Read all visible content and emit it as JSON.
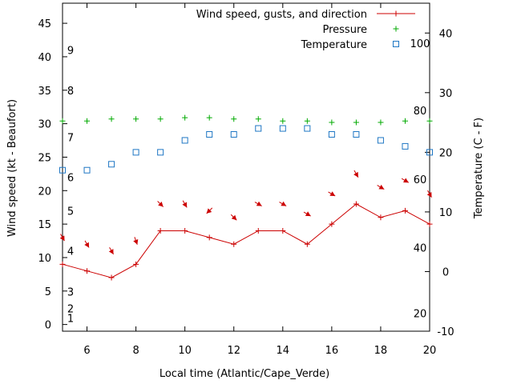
{
  "chart_data": {
    "type": "line",
    "title": "",
    "xlabel": "Local time (Atlantic/Cape_Verde)",
    "ylabel": "Wind speed (kt - Beaufort)",
    "y2label": "Temperature (C - F)",
    "xlim": [
      5,
      20
    ],
    "ylim": [
      -1,
      48
    ],
    "y2lim": [
      -10,
      45
    ],
    "grid": false,
    "legend_position": "top-right",
    "x_ticks": [
      6,
      8,
      10,
      12,
      14,
      16,
      18,
      20
    ],
    "y_ticks": [
      0,
      5,
      10,
      15,
      20,
      25,
      30,
      35,
      40,
      45
    ],
    "y2_ticks": [
      -10,
      0,
      10,
      20,
      30,
      40
    ],
    "beaufort_labels": [
      {
        "y": 1,
        "label": "1"
      },
      {
        "y": 2.4,
        "label": "2"
      },
      {
        "y": 4.9,
        "label": "3"
      },
      {
        "y": 11,
        "label": "4"
      },
      {
        "y": 17,
        "label": "5"
      },
      {
        "y": 22,
        "label": "6"
      },
      {
        "y": 28,
        "label": "7"
      },
      {
        "y": 35,
        "label": "8"
      },
      {
        "y": 41,
        "label": "9"
      }
    ],
    "fahrenheit_labels": [
      {
        "y": -7,
        "label": "20"
      },
      {
        "y": 4,
        "label": "40"
      },
      {
        "y": 15.5,
        "label": "60"
      },
      {
        "y": 27,
        "label": "80"
      },
      {
        "y": 38.3,
        "label": "100"
      }
    ],
    "series": [
      {
        "name": "Wind speed, gusts, and direction",
        "color": "#cc0000",
        "x": [
          5,
          6,
          7,
          8,
          9,
          10,
          11,
          12,
          13,
          14,
          15,
          16,
          17,
          18,
          19,
          20
        ],
        "values": [
          9,
          8,
          7,
          9,
          14,
          14,
          13,
          12,
          14,
          14,
          12,
          15,
          18,
          16,
          17,
          15
        ],
        "gusts": [
          13,
          12,
          11,
          12.5,
          18,
          18,
          17,
          16,
          18,
          18,
          16.5,
          19.5,
          22.5,
          20.5,
          21.5,
          19.5
        ],
        "direction_deg": [
          330,
          330,
          330,
          340,
          315,
          330,
          45,
          315,
          300,
          300,
          300,
          300,
          330,
          300,
          300,
          330
        ]
      },
      {
        "name": "Pressure",
        "color": "#00aa00",
        "x": [
          5,
          6,
          7,
          8,
          9,
          10,
          11,
          12,
          13,
          14,
          15,
          16,
          17,
          18,
          19,
          20
        ],
        "values": [
          30.4,
          30.4,
          30.7,
          30.7,
          30.7,
          30.9,
          30.9,
          30.7,
          30.7,
          30.4,
          30.4,
          30.2,
          30.2,
          30.2,
          30.4,
          30.4
        ]
      },
      {
        "name": "Temperature",
        "color": "#1f77c4",
        "axis": "right",
        "x": [
          5,
          6,
          7,
          8,
          9,
          10,
          11,
          12,
          13,
          14,
          15,
          16,
          17,
          18,
          19,
          20
        ],
        "values": [
          17,
          17,
          18,
          20,
          20,
          22,
          23,
          23,
          24,
          24,
          24,
          23,
          23,
          22,
          21,
          20
        ]
      }
    ]
  }
}
